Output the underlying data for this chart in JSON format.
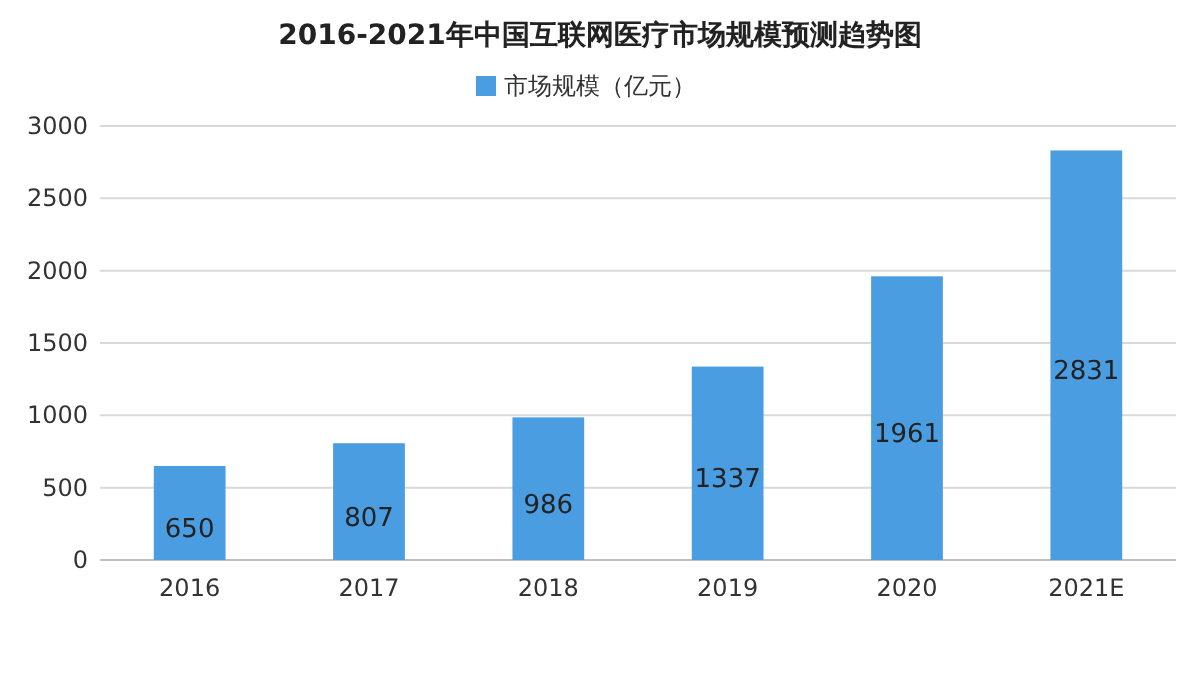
{
  "chart_data": {
    "type": "bar",
    "title": "2016-2021年中国互联网医疗市场规模预测趋势图",
    "categories": [
      "2016",
      "2017",
      "2018",
      "2019",
      "2020",
      "2021E"
    ],
    "series": [
      {
        "name": "市场规模（亿元）",
        "color": "#4a9de0",
        "values": [
          650,
          807,
          986,
          1337,
          1961,
          2831
        ]
      }
    ],
    "ylim": [
      0,
      3000
    ],
    "yticks": [
      0,
      500,
      1000,
      1500,
      2000,
      2500,
      3000
    ],
    "grid": "y",
    "legend": "top",
    "data_labels": true
  }
}
